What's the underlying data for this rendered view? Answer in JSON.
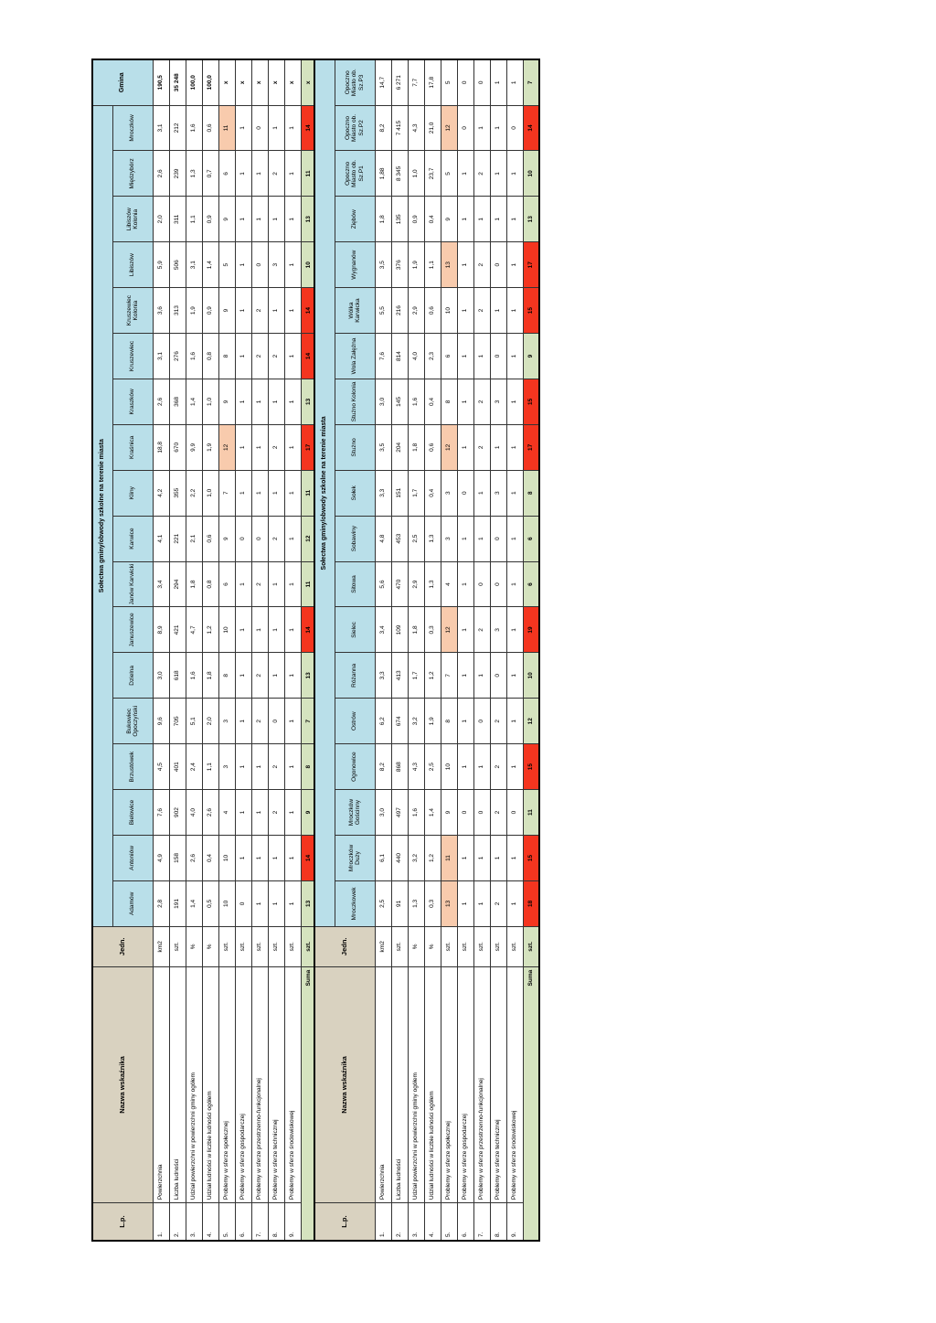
{
  "table1": {
    "header": {
      "lp": "L.p.",
      "name": "Nazwa wskaźnika",
      "unit": "Jedn.",
      "group": "Sołectwa gminy/obwody szkolne na terenie miasta",
      "total": "Gmina"
    },
    "columns": [
      "Adamów",
      "Antoniów",
      "Bielowice",
      "Brzustówek",
      "Bukowiec Opoczyński",
      "Dzielna",
      "Januszewice",
      "Janów Karwicki",
      "Karwice",
      "Kliny",
      "Kraśnica",
      "Kraszków",
      "Kruszewiec",
      "Kruszewiec Kolonia",
      "Libiszów",
      "Libiszów Kolonia",
      "Międzybórz",
      "Mroczków"
    ],
    "rows": [
      {
        "lp": "1.",
        "name": "Powierzchnia",
        "unit": "km2",
        "values": [
          "2,8",
          "4,9",
          "7,6",
          "4,5",
          "9,6",
          "3,0",
          "8,9",
          "3,4",
          "4,1",
          "4,2",
          "18,8",
          "2,6",
          "3,1",
          "3,6",
          "5,9",
          "2,0",
          "2,6",
          "3,1"
        ],
        "total": "190,5"
      },
      {
        "lp": "2.",
        "name": "Liczba ludności",
        "unit": "szt.",
        "values": [
          "191",
          "158",
          "902",
          "401",
          "705",
          "618",
          "421",
          "294",
          "221",
          "355",
          "670",
          "368",
          "276",
          "313",
          "506",
          "311",
          "239",
          "212"
        ],
        "total": "35 248"
      },
      {
        "lp": "3.",
        "name": "Udział powierzchni w powierzchni gminy ogółem",
        "unit": "%",
        "values": [
          "1,4",
          "2,6",
          "4,0",
          "2,4",
          "5,1",
          "1,6",
          "4,7",
          "1,8",
          "2,1",
          "2,2",
          "9,9",
          "1,4",
          "1,6",
          "1,9",
          "3,1",
          "1,1",
          "1,3",
          "1,6"
        ],
        "total": "100,0"
      },
      {
        "lp": "4.",
        "name": "Udział ludności w liczbie ludności ogółem",
        "unit": "%",
        "values": [
          "0,5",
          "0,4",
          "2,6",
          "1,1",
          "2,0",
          "1,8",
          "1,2",
          "0,8",
          "0,6",
          "1,0",
          "1,9",
          "1,0",
          "0,8",
          "0,9",
          "1,4",
          "0,9",
          "0,7",
          "0,6"
        ],
        "total": "100,0"
      },
      {
        "lp": "5.",
        "name": "Problemy w sferze społecznej",
        "unit": "szt.",
        "values": [
          "10",
          "10",
          "4",
          "3",
          "3",
          "8",
          "10",
          "6",
          "9",
          "7",
          "12",
          "9",
          "8",
          "9",
          "5",
          "9",
          "6",
          "11"
        ],
        "total": "x"
      },
      {
        "lp": "6.",
        "name": "Problemy w sferze gospodarczej",
        "unit": "szt.",
        "values": [
          "0",
          "1",
          "1",
          "1",
          "1",
          "1",
          "1",
          "1",
          "0",
          "1",
          "1",
          "1",
          "1",
          "1",
          "1",
          "1",
          "1",
          "1"
        ],
        "total": "x"
      },
      {
        "lp": "7.",
        "name": "Problemy w sferze przestrzenno-funkcjonalnej",
        "unit": "szt.",
        "values": [
          "1",
          "1",
          "1",
          "1",
          "2",
          "2",
          "1",
          "2",
          "0",
          "1",
          "1",
          "1",
          "2",
          "2",
          "0",
          "1",
          "1",
          "0"
        ],
        "total": "x"
      },
      {
        "lp": "8.",
        "name": "Problemy w sferze technicznej",
        "unit": "szt.",
        "values": [
          "1",
          "1",
          "2",
          "2",
          "0",
          "1",
          "1",
          "1",
          "2",
          "1",
          "2",
          "1",
          "2",
          "1",
          "3",
          "1",
          "2",
          "1"
        ],
        "total": "x"
      },
      {
        "lp": "9.",
        "name": "Problemy w sferze środowiskowej",
        "unit": "szt.",
        "values": [
          "1",
          "1",
          "1",
          "1",
          "1",
          "1",
          "1",
          "1",
          "1",
          "1",
          "1",
          "1",
          "1",
          "1",
          "1",
          "1",
          "1",
          "1"
        ],
        "total": "x"
      }
    ],
    "sum": {
      "label": "Suma",
      "unit": "szt.",
      "values": [
        "13",
        "14",
        "9",
        "8",
        "7",
        "13",
        "14",
        "11",
        "12",
        "11",
        "17",
        "13",
        "14",
        "14",
        "10",
        "13",
        "11",
        "14"
      ],
      "total": "x"
    }
  },
  "table2": {
    "header": {
      "lp": "L.p.",
      "name": "Nazwa wskaźnika",
      "unit": "Jedn.",
      "group": "Sołectwa gminy/obwody szkolne na terenie miasta"
    },
    "columns": [
      "Mroczkowek",
      "Mroczków Duży",
      "Mroczków Gościnny",
      "Ogonowice",
      "Ostrów",
      "Różanna",
      "Sielec",
      "Sitowa",
      "Sobawiny",
      "Sołek",
      "Stużno",
      "Stużno Kolonia",
      "Wola Załężna",
      "Wólka Karwicka",
      "Wygnanów",
      "Ziębów",
      "Opoczno Miasto ob. Sz.P1",
      "Opoczno Miasto ob. Sz.P2",
      "Opoczno Miasto ob. Sz.P3"
    ],
    "rows": [
      {
        "lp": "1.",
        "name": "Powierzchnia",
        "unit": "km2",
        "values": [
          "2,5",
          "6,1",
          "3,0",
          "8,2",
          "6,2",
          "3,3",
          "3,4",
          "5,6",
          "4,8",
          "3,3",
          "3,5",
          "3,0",
          "7,6",
          "5,5",
          "3,5",
          "1,8",
          "1,88",
          "8,2",
          "14,7"
        ]
      },
      {
        "lp": "2.",
        "name": "Liczba ludności",
        "unit": "szt.",
        "values": [
          "91",
          "440",
          "497",
          "868",
          "674",
          "413",
          "109",
          "470",
          "453",
          "151",
          "204",
          "145",
          "814",
          "216",
          "376",
          "135",
          "8 345",
          "7 415",
          "6 271"
        ]
      },
      {
        "lp": "3.",
        "name": "Udział powierzchni w powierzchni gminy ogółem",
        "unit": "%",
        "values": [
          "1,3",
          "3,2",
          "1,6",
          "4,3",
          "3,2",
          "1,7",
          "1,8",
          "2,9",
          "2,5",
          "1,7",
          "1,8",
          "1,6",
          "4,0",
          "2,9",
          "1,9",
          "0,9",
          "1,0",
          "4,3",
          "7,7"
        ]
      },
      {
        "lp": "4.",
        "name": "Udział ludności w liczbie ludności ogółem",
        "unit": "%",
        "values": [
          "0,3",
          "1,2",
          "1,4",
          "2,5",
          "1,9",
          "1,2",
          "0,3",
          "1,3",
          "1,3",
          "0,4",
          "0,6",
          "0,4",
          "2,3",
          "0,6",
          "1,1",
          "0,4",
          "23,7",
          "21,0",
          "17,8"
        ]
      },
      {
        "lp": "5.",
        "name": "Problemy w sferze społecznej",
        "unit": "szt.",
        "values": [
          "13",
          "11",
          "9",
          "10",
          "8",
          "7",
          "12",
          "4",
          "3",
          "3",
          "12",
          "8",
          "6",
          "10",
          "13",
          "9",
          "5",
          "12",
          "5"
        ]
      },
      {
        "lp": "6.",
        "name": "Problemy w sferze gospodarczej",
        "unit": "szt.",
        "values": [
          "1",
          "1",
          "0",
          "1",
          "1",
          "1",
          "1",
          "1",
          "1",
          "0",
          "1",
          "1",
          "1",
          "1",
          "1",
          "1",
          "1",
          "0",
          "0"
        ]
      },
      {
        "lp": "7.",
        "name": "Problemy w sferze przestrzenno-funkcjonalnej",
        "unit": "szt.",
        "values": [
          "1",
          "1",
          "0",
          "1",
          "0",
          "1",
          "2",
          "0",
          "1",
          "1",
          "2",
          "2",
          "1",
          "2",
          "2",
          "1",
          "2",
          "1",
          "0"
        ]
      },
      {
        "lp": "8.",
        "name": "Problemy w sferze technicznej",
        "unit": "szt.",
        "values": [
          "2",
          "1",
          "2",
          "2",
          "2",
          "0",
          "3",
          "0",
          "0",
          "3",
          "1",
          "3",
          "0",
          "1",
          "0",
          "1",
          "1",
          "1",
          "1"
        ]
      },
      {
        "lp": "9.",
        "name": "Problemy w sferze środowiskowej",
        "unit": "szt.",
        "values": [
          "1",
          "1",
          "0",
          "1",
          "1",
          "1",
          "1",
          "1",
          "1",
          "1",
          "1",
          "1",
          "1",
          "1",
          "1",
          "1",
          "1",
          "0",
          "1"
        ]
      }
    ],
    "sum": {
      "label": "Suma",
      "unit": "szt.",
      "values": [
        "18",
        "15",
        "11",
        "15",
        "12",
        "10",
        "19",
        "6",
        "6",
        "8",
        "17",
        "15",
        "9",
        "15",
        "17",
        "13",
        "10",
        "14",
        "7"
      ]
    }
  },
  "highlights": {
    "peach": "#f8cbad",
    "red": "#f4351f",
    "header_blue": "#b9dfe9",
    "header_beige": "#d9d2c0",
    "sum_green": "#d5e3bf",
    "table1_peach": [
      {
        "row": 4,
        "col": 10
      },
      {
        "row": 4,
        "col": 17
      }
    ],
    "table1_red": [
      1,
      6,
      10,
      12,
      13,
      17
    ],
    "table2_peach": [
      {
        "row": 4,
        "col": 0
      },
      {
        "row": 4,
        "col": 1
      },
      {
        "row": 4,
        "col": 6
      },
      {
        "row": 4,
        "col": 10
      },
      {
        "row": 4,
        "col": 14
      },
      {
        "row": 4,
        "col": 17
      }
    ],
    "table2_red": [
      0,
      1,
      3,
      6,
      10,
      11,
      13,
      14,
      17
    ]
  }
}
